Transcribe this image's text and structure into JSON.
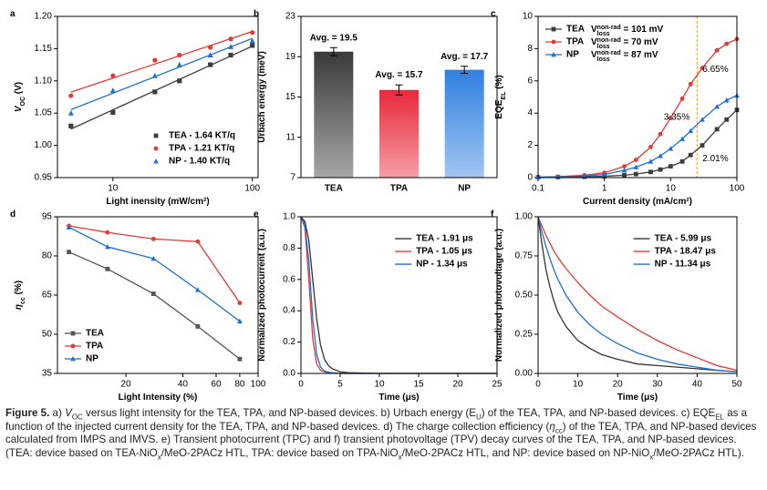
{
  "chart_data": [
    {
      "type": "scatter",
      "panel": "a",
      "xlog": true,
      "fit": true,
      "legend": "lower right",
      "xlabel": "Light inensity (mW/cm²)",
      "ylabel": [
        {
          "text": "V",
          "italic": true
        },
        {
          "text": "OC",
          "sub": true
        },
        {
          "text": " (V)"
        }
      ],
      "x": [
        5,
        10,
        20,
        30,
        50,
        70,
        100
      ],
      "xlim": [
        4,
        110
      ],
      "xticks": [
        10,
        100
      ],
      "ylim": [
        0.95,
        1.2
      ],
      "yticks": [
        0.95,
        {
          "value": 1,
          "label": "1.00"
        },
        1.05,
        {
          "value": 1.1,
          "label": "1.10"
        },
        1.15,
        {
          "value": 1.2,
          "label": "1.20"
        }
      ],
      "series": [
        {
          "name": "TEA - 1.64 KT/q",
          "color": "#3c3c3c",
          "marker": "square",
          "values": [
            1.03,
            1.051,
            1.083,
            1.1,
            1.125,
            1.14,
            1.155
          ]
        },
        {
          "name": "TPA - 1.21 KT/q",
          "color": "#e53935",
          "marker": "circle",
          "values": [
            1.077,
            1.108,
            1.132,
            1.14,
            1.152,
            1.165,
            1.175
          ]
        },
        {
          "name": "NP - 1.40 KT/q",
          "color": "#1e6fd9",
          "marker": "triangle",
          "values": [
            1.05,
            1.085,
            1.108,
            1.125,
            1.14,
            1.153,
            1.162
          ]
        }
      ]
    },
    {
      "type": "bar",
      "panel": "b",
      "ylabel": "Urbach energy (meV)",
      "categories": [
        "TEA",
        "TPA",
        "NP"
      ],
      "values": [
        19.5,
        15.7,
        17.7
      ],
      "errors": [
        0.4,
        0.5,
        0.35
      ],
      "value_labels": [
        "Avg. = 19.5",
        "Avg. = 15.7",
        "Avg. = 17.7"
      ],
      "colors": [
        "#3a3a3a",
        "#e8283a",
        "#2f7fe0"
      ],
      "ylim": [
        7,
        23
      ],
      "yticks": [
        7,
        11,
        15,
        19,
        23
      ]
    },
    {
      "type": "line",
      "panel": "c",
      "xlog": true,
      "markers": true,
      "legend": "upper left",
      "xlabel": "Current density (mA/cm²)",
      "ylabel": [
        {
          "text": "EQE"
        },
        {
          "text": "EL",
          "sub": true
        },
        {
          "text": " (%)"
        }
      ],
      "x": [
        0.1,
        0.2,
        0.5,
        1,
        2,
        3,
        5,
        7,
        10,
        15,
        20,
        30,
        50,
        70,
        100
      ],
      "xlim": [
        0.1,
        100
      ],
      "xticks": [
        0.1,
        1,
        10,
        100
      ],
      "ylim": [
        0,
        10
      ],
      "yticks": [
        0,
        2,
        4,
        6,
        8,
        10
      ],
      "vline": 25,
      "vline_color": "#e8a020",
      "series": [
        {
          "name": "TEA",
          "color": "#3c3c3c",
          "marker": "square",
          "note": [
            {
              "text": "V"
            },
            {
              "text": "loss",
              "sub": true
            },
            {
              "text": "non-rad",
              "sup": true
            },
            {
              "text": " = 101 mV"
            }
          ],
          "values": [
            0.02,
            0.03,
            0.05,
            0.08,
            0.15,
            0.22,
            0.35,
            0.5,
            0.7,
            1.0,
            1.4,
            2.0,
            3.0,
            3.6,
            4.2
          ]
        },
        {
          "name": "TPA",
          "color": "#e53935",
          "marker": "circle",
          "note": [
            {
              "text": "V"
            },
            {
              "text": "loss",
              "sub": true
            },
            {
              "text": "non-rad",
              "sup": true
            },
            {
              "text": " = 70 mV"
            }
          ],
          "values": [
            0.03,
            0.06,
            0.15,
            0.3,
            0.7,
            1.1,
            1.9,
            2.7,
            3.7,
            4.9,
            5.8,
            6.8,
            7.9,
            8.3,
            8.6
          ]
        },
        {
          "name": "NP",
          "color": "#1e6fd9",
          "marker": "triangle",
          "note": [
            {
              "text": "V"
            },
            {
              "text": "loss",
              "sub": true
            },
            {
              "text": "non-rad",
              "sup": true
            },
            {
              "text": " = 87 mV"
            }
          ],
          "values": [
            0.02,
            0.05,
            0.1,
            0.2,
            0.45,
            0.65,
            1.0,
            1.35,
            1.8,
            2.4,
            2.9,
            3.6,
            4.4,
            4.8,
            5.1
          ]
        }
      ],
      "annotations": [
        {
          "text": "6.65%",
          "series": 1
        },
        {
          "text": "3.35%",
          "series": 2
        },
        {
          "text": "2.01%",
          "series": 0
        }
      ]
    },
    {
      "type": "line",
      "panel": "d",
      "xlog": true,
      "markers": true,
      "legend": "lower left",
      "xlabel": "Light Intensity (%)",
      "ylabel": [
        {
          "text": "η",
          "italic": true
        },
        {
          "text": "cc",
          "sub": true
        },
        {
          "text": " (%)"
        }
      ],
      "x": [
        10,
        16,
        28,
        48,
        80
      ],
      "xlim": [
        8.7,
        100
      ],
      "xticks": [
        20,
        40,
        60,
        80,
        100
      ],
      "ylim": [
        35,
        95
      ],
      "yticks": [
        35,
        50,
        65,
        80,
        95
      ],
      "series": [
        {
          "name": "TEA",
          "color": "#555555",
          "marker": "square",
          "values": [
            81.5,
            75,
            65.5,
            53,
            40.5
          ]
        },
        {
          "name": "TPA",
          "color": "#e53935",
          "marker": "circle",
          "values": [
            91.5,
            89,
            86.5,
            85.5,
            62
          ]
        },
        {
          "name": "NP",
          "color": "#1e6fd9",
          "marker": "triangle",
          "values": [
            91,
            83.5,
            79,
            67,
            55
          ]
        }
      ]
    },
    {
      "type": "line",
      "panel": "e",
      "legend": "upper right",
      "xlabel": "Time (μs)",
      "ylabel": "Normalized photocurrent (a.u.)",
      "x": [
        0,
        0.5,
        1,
        1.5,
        2,
        2.5,
        3,
        3.5,
        4,
        5,
        6,
        8,
        10,
        15,
        20,
        25
      ],
      "xlim": [
        0,
        25
      ],
      "xticks": [
        0,
        5,
        10,
        15,
        20,
        25
      ],
      "ylim": [
        0,
        1
      ],
      "yticks": [
        {
          "value": 0,
          "label": "0.0"
        },
        0.2,
        0.4,
        0.6,
        0.8,
        {
          "value": 1,
          "label": "1.0"
        }
      ],
      "series": [
        {
          "name": "TEA - 1.91 μs",
          "color": "#333333",
          "values": [
            1,
            0.97,
            0.85,
            0.6,
            0.35,
            0.18,
            0.09,
            0.05,
            0.03,
            0.01,
            0.005,
            0.002,
            0,
            0,
            0,
            0
          ]
        },
        {
          "name": "TPA - 1.05 μs",
          "color": "#e53935",
          "values": [
            1,
            0.93,
            0.6,
            0.22,
            0.06,
            0.02,
            0.01,
            0.005,
            0.003,
            0,
            0,
            0,
            0,
            0,
            0,
            0
          ]
        },
        {
          "name": "NP - 1.34 μs",
          "color": "#1e6fd9",
          "values": [
            1,
            0.95,
            0.72,
            0.35,
            0.12,
            0.04,
            0.015,
            0.008,
            0.004,
            0,
            0,
            0,
            0,
            0,
            0,
            0
          ]
        }
      ]
    },
    {
      "type": "line",
      "panel": "f",
      "legend": "upper right",
      "xlabel": "Time (μs)",
      "ylabel": "Normalized photovoltage (a.u.)",
      "x": [
        0,
        1,
        2,
        3,
        4,
        5,
        7,
        10,
        13,
        16,
        20,
        25,
        30,
        35,
        40,
        45,
        50
      ],
      "xlim": [
        0,
        50
      ],
      "xticks": [
        0,
        10,
        20,
        30,
        40,
        50
      ],
      "ylim": [
        0,
        1
      ],
      "yticks": [
        {
          "value": 0,
          "label": "0.00"
        },
        0.25,
        {
          "value": 0.5,
          "label": "0.50"
        },
        0.75,
        {
          "value": 1,
          "label": "1.00"
        }
      ],
      "series": [
        {
          "name": "TEA - 5.99 μs",
          "color": "#333333",
          "values": [
            1,
            0.82,
            0.66,
            0.55,
            0.46,
            0.39,
            0.3,
            0.21,
            0.16,
            0.12,
            0.09,
            0.06,
            0.05,
            0.04,
            0.03,
            0.02,
            0.01
          ]
        },
        {
          "name": "TPA - 18.47 μs",
          "color": "#e53935",
          "values": [
            1,
            0.94,
            0.88,
            0.83,
            0.78,
            0.74,
            0.67,
            0.58,
            0.5,
            0.43,
            0.36,
            0.28,
            0.21,
            0.15,
            0.1,
            0.05,
            0.02
          ]
        },
        {
          "name": "NP - 11.34 μs",
          "color": "#1e6fd9",
          "values": [
            1,
            0.9,
            0.81,
            0.73,
            0.66,
            0.6,
            0.5,
            0.39,
            0.31,
            0.25,
            0.19,
            0.13,
            0.09,
            0.06,
            0.04,
            0.02,
            0.01
          ]
        }
      ]
    }
  ],
  "caption": [
    {
      "text": "Figure 5.",
      "bold": true
    },
    {
      "text": "  a) "
    },
    {
      "text": "V",
      "italic": true
    },
    {
      "text": "OC",
      "sub": true
    },
    {
      "text": " versus light intensity for the TEA, TPA, and NP-based devices. b) Urbach energy (E"
    },
    {
      "text": "U",
      "sub": true
    },
    {
      "text": ") of the TEA, TPA, and NP-based devices. c) EQE"
    },
    {
      "text": "EL",
      "sub": true
    },
    {
      "text": " as a function of the injected current density for the TEA, TPA, and NP-based devices. d) The charge collection efficiency ("
    },
    {
      "text": "η",
      "italic": true
    },
    {
      "text": "cc",
      "sub": true
    },
    {
      "text": ") of the TEA, TPA, and NP-based devices calculated from IMPS and IMVS. e) Transient photocurrent (TPC) and f) transient photovoltage (TPV) decay curves of the TEA, TPA, and NP-based devices. (TEA: device based on TEA-NiO"
    },
    {
      "text": "x",
      "sub": true
    },
    {
      "text": "/MeO-2PACz HTL, TPA: device based on TPA-NiO"
    },
    {
      "text": "x",
      "sub": true
    },
    {
      "text": "/MeO-2PACz HTL, and NP: device based on NP-NiO"
    },
    {
      "text": "x",
      "sub": true
    },
    {
      "text": "/MeO-2PACz HTL)."
    }
  ]
}
